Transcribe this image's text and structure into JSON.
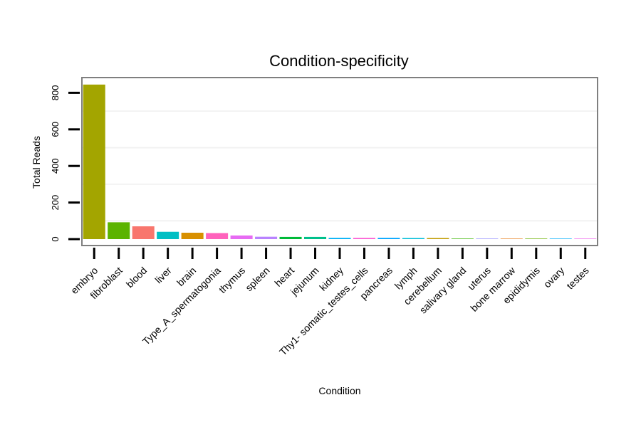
{
  "chart_data": {
    "type": "bar",
    "title": "Condition-specificity",
    "xlabel": "Condition",
    "ylabel": "Total Reads",
    "ylim": [
      0,
      880
    ],
    "yticks": [
      0,
      200,
      400,
      600,
      800
    ],
    "gridlines": [
      100,
      300,
      500,
      700
    ],
    "categories": [
      "embryo",
      "fibroblast",
      "blood",
      "liver",
      "brain",
      "Type_A_spermatogonia",
      "thymus",
      "spleen",
      "heart",
      "jejunum",
      "kidney",
      "Thy1- somatic_testes_cells",
      "pancreas",
      "lymph",
      "cerebellum",
      "salivary gland",
      "uterus",
      "bone marrow",
      "epididymis",
      "ovary",
      "testes"
    ],
    "values": [
      845,
      92,
      70,
      40,
      35,
      33,
      20,
      13,
      12,
      12,
      7,
      7,
      7,
      6,
      6,
      3,
      3,
      3,
      3,
      3,
      3
    ],
    "colors": [
      "#A3A500",
      "#5BB300",
      "#F8766D",
      "#00BFC4",
      "#D89000",
      "#FF62BC",
      "#E76BF3",
      "#B983FF",
      "#00BA38",
      "#00C08B",
      "#00B0F6",
      "#FC61D5",
      "#00A5FF",
      "#00BCD8",
      "#C09B00",
      "#39B600",
      "#9590FF",
      "#E88526",
      "#6BB100",
      "#00ACFC",
      "#EF67EB"
    ]
  }
}
